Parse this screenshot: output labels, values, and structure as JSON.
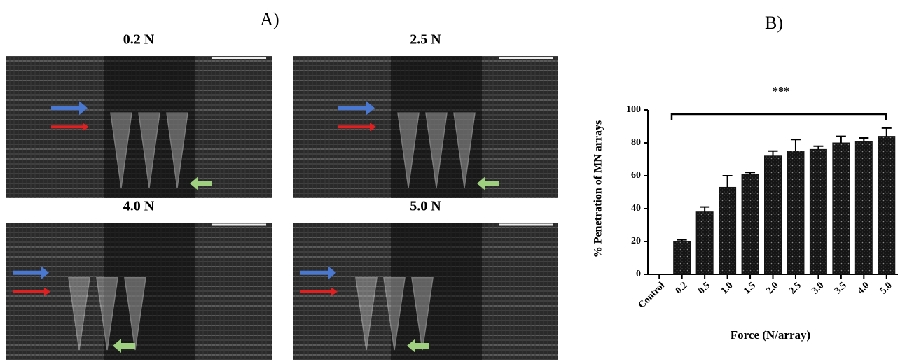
{
  "panel_a": {
    "label": "A)",
    "images": [
      {
        "label": "0.2 N"
      },
      {
        "label": "2.5 N"
      },
      {
        "label": "4.0 N"
      },
      {
        "label": "5.0 N"
      }
    ]
  },
  "chart_data": {
    "type": "bar",
    "panel_label": "B)",
    "x_label": "Force (N/array)",
    "y_label": "% Penetration  of MN arrays",
    "annotation": "***",
    "categories": [
      "Control",
      "0.2",
      "0.5",
      "1.0",
      "1.5",
      "2.0",
      "2.5",
      "3.0",
      "3.5",
      "4.0",
      "5.0"
    ],
    "values": [
      0,
      20,
      38,
      53,
      61,
      72,
      75,
      76,
      80,
      81,
      84
    ],
    "errors": [
      null,
      1,
      3,
      7,
      1,
      3,
      7,
      2,
      4,
      2,
      5
    ],
    "color": "#151515",
    "ylim": [
      0,
      100
    ],
    "yticks": [
      0,
      20,
      40,
      60,
      80,
      100
    ]
  }
}
